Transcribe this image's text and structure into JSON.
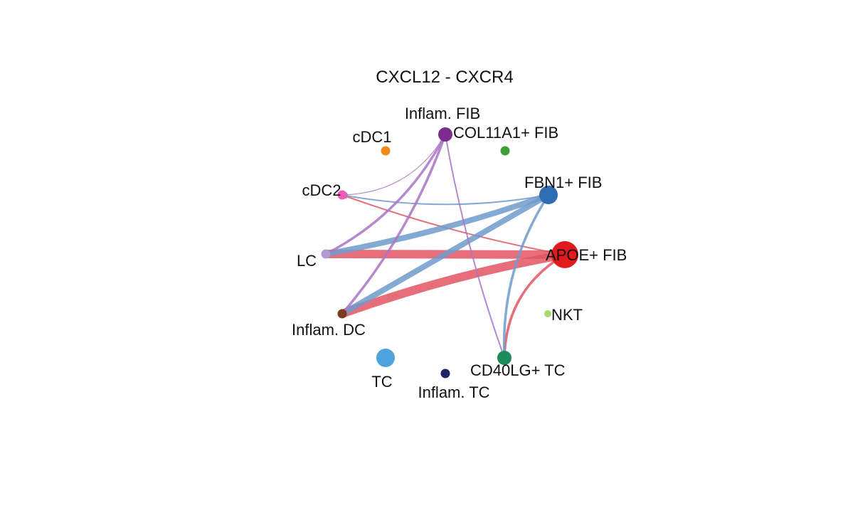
{
  "diagram": {
    "title": "CXCL12 - CXCR4",
    "nodes": [
      {
        "id": "inflam_fib",
        "label": "Inflam. FIB",
        "color": "#7B2D8E",
        "size": "medium"
      },
      {
        "id": "col11a1_fib",
        "label": "COL11A1+ FIB",
        "color": "#3E9C3A",
        "size": "small"
      },
      {
        "id": "fbn1_fib",
        "label": "FBN1+ FIB",
        "color": "#2E6DB4",
        "size": "large"
      },
      {
        "id": "apoe_fib",
        "label": "APOE+ FIB",
        "color": "#E31A1C",
        "size": "largest"
      },
      {
        "id": "nkt",
        "label": "NKT",
        "color": "#A6D96A",
        "size": "tiny"
      },
      {
        "id": "cd40lg_tc",
        "label": "CD40LG+ TC",
        "color": "#1F8A5B",
        "size": "medium"
      },
      {
        "id": "inflam_tc",
        "label": "Inflam. TC",
        "color": "#1F2466",
        "size": "small"
      },
      {
        "id": "tc",
        "label": "TC",
        "color": "#4CA3DD",
        "size": "large"
      },
      {
        "id": "inflam_dc",
        "label": "Inflam. DC",
        "color": "#7A3A1C",
        "size": "small"
      },
      {
        "id": "lc",
        "label": "LC",
        "color": "#B09AD0",
        "size": "small"
      },
      {
        "id": "cdc2",
        "label": "cDC2",
        "color": "#F15BB5",
        "size": "small"
      },
      {
        "id": "cdc1",
        "label": "cDC1",
        "color": "#F08A1C",
        "size": "small"
      }
    ],
    "edges": [
      {
        "source": "apoe_fib",
        "target": "lc",
        "color": "#E25563",
        "strength": "very strong"
      },
      {
        "source": "apoe_fib",
        "target": "inflam_dc",
        "color": "#E25563",
        "strength": "very strong"
      },
      {
        "source": "apoe_fib",
        "target": "cd40lg_tc",
        "color": "#E25563",
        "strength": "medium"
      },
      {
        "source": "apoe_fib",
        "target": "cdc2",
        "color": "#E25563",
        "strength": "weak"
      },
      {
        "source": "fbn1_fib",
        "target": "lc",
        "color": "#6E9BCB",
        "strength": "strong"
      },
      {
        "source": "fbn1_fib",
        "target": "inflam_dc",
        "color": "#6E9BCB",
        "strength": "strong"
      },
      {
        "source": "fbn1_fib",
        "target": "cd40lg_tc",
        "color": "#6E9BCB",
        "strength": "medium"
      },
      {
        "source": "fbn1_fib",
        "target": "cdc2",
        "color": "#6E9BCB",
        "strength": "weak"
      },
      {
        "source": "inflam_fib",
        "target": "lc",
        "color": "#A874C2",
        "strength": "medium"
      },
      {
        "source": "inflam_fib",
        "target": "inflam_dc",
        "color": "#A874C2",
        "strength": "medium"
      },
      {
        "source": "inflam_fib",
        "target": "cd40lg_tc",
        "color": "#A874C2",
        "strength": "weak"
      },
      {
        "source": "inflam_fib",
        "target": "cdc2",
        "color": "#A874C2",
        "strength": "very weak"
      }
    ]
  }
}
